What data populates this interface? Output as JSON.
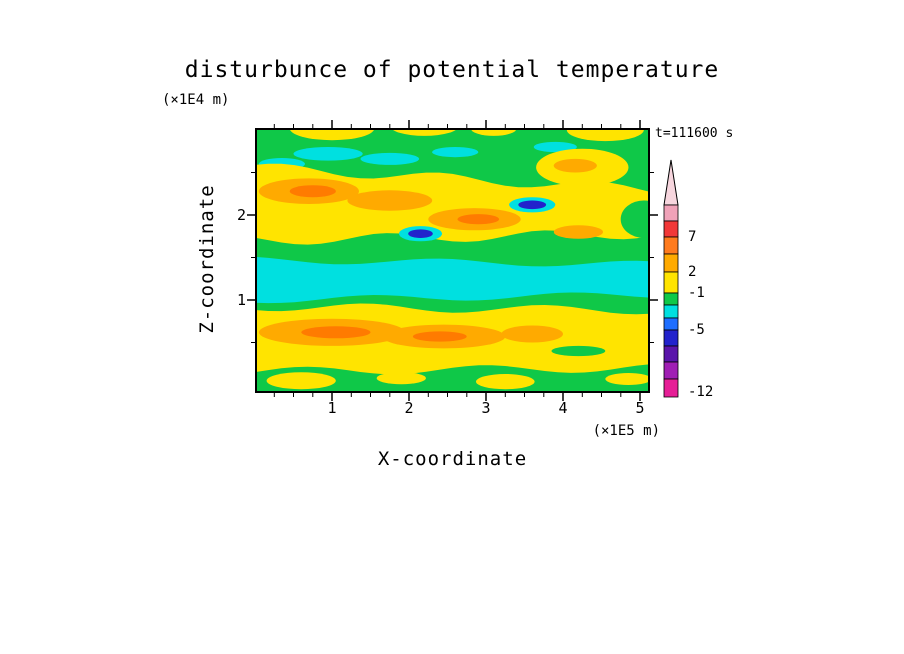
{
  "title": "disturbunce of potential temperature",
  "time_label": "t=111600 s",
  "axes": {
    "x": {
      "label": "X-coordinate",
      "unit_label": "(×1E5 m)",
      "tick_labels": [
        "1",
        "2",
        "3",
        "4",
        "5"
      ],
      "ticks": [
        1,
        2,
        3,
        4,
        5
      ],
      "range": [
        0,
        5.13
      ]
    },
    "y": {
      "label": "Z-coordinate",
      "unit_label": "(×1E4 m)",
      "tick_labels": [
        "1",
        "2"
      ],
      "ticks": [
        1,
        2
      ],
      "range": [
        0,
        3.02
      ]
    }
  },
  "colorbar": {
    "tick_labels": [
      "7",
      "2",
      "-1",
      "-5",
      "-12"
    ],
    "levels_labeled": [
      7,
      2,
      -1,
      -5,
      -12
    ],
    "arrow_color": "#f7d6de",
    "segments": [
      {
        "color": "#f0a2b8"
      },
      {
        "color": "#f23838"
      },
      {
        "color": "#ff7b1e"
      },
      {
        "color": "#ffaa00"
      },
      {
        "color": "#ffe400"
      },
      {
        "color": "#0fc848"
      },
      {
        "color": "#00e0e0"
      },
      {
        "color": "#1e6eff"
      },
      {
        "color": "#2222cc"
      },
      {
        "color": "#5a14aa"
      },
      {
        "color": "#a01eb4"
      },
      {
        "color": "#e61e96"
      }
    ]
  },
  "chart_data": {
    "type": "heatmap",
    "title": "disturbunce of potential temperature",
    "xlabel": "X-coordinate (×1E5 m)",
    "ylabel": "Z-coordinate (×1E4 m)",
    "annotation": "t=111600 s",
    "x_range": [
      0,
      5.13
    ],
    "z_range": [
      0,
      3.02
    ],
    "x_ticks": [
      1,
      2,
      3,
      4,
      5
    ],
    "z_ticks": [
      1,
      2
    ],
    "levels_labeled": [
      7,
      2,
      -1,
      -5,
      -12
    ],
    "grid": {
      "x": [
        0.25,
        0.75,
        1.25,
        1.75,
        2.25,
        2.75,
        3.25,
        3.75,
        4.25,
        4.75
      ],
      "z": [
        2.9,
        2.5,
        2.1,
        1.7,
        1.25,
        0.85,
        0.5,
        0.15
      ],
      "values": [
        [
          0,
          -2,
          -2,
          0,
          -2,
          0,
          1,
          3,
          1,
          0
        ],
        [
          3,
          5,
          3,
          3,
          1,
          1,
          0,
          3,
          3,
          1
        ],
        [
          1,
          4,
          5,
          3,
          3,
          3,
          1,
          -6,
          1,
          3
        ],
        [
          1,
          1,
          3,
          1,
          -6,
          0,
          0,
          1,
          1,
          0
        ],
        [
          -2,
          -2,
          -3,
          -2,
          -2,
          -3,
          -2,
          -2,
          -2,
          -2
        ],
        [
          3,
          3,
          3,
          3,
          3,
          3,
          3,
          1,
          1,
          1
        ],
        [
          4,
          6,
          5,
          6,
          4,
          3,
          4,
          3,
          3,
          1
        ],
        [
          0,
          1,
          0,
          0,
          1,
          0,
          0,
          0,
          1,
          0
        ]
      ],
      "note": "approximate disturbance values estimated from fill colors"
    },
    "palette": {
      "green": "#0fc848",
      "cyan": "#00e0e0",
      "yellow": "#ffe400",
      "orange": "#ffaa00",
      "deeporange": "#ff7b00",
      "navy": "#2222cc"
    },
    "base_color": "green",
    "features": [
      {
        "t": "blob",
        "c": "yellow",
        "x": 1.0,
        "z": 3.02,
        "rx": 0.55,
        "rz": 0.14
      },
      {
        "t": "blob",
        "c": "yellow",
        "x": 2.2,
        "z": 3.05,
        "rx": 0.45,
        "rz": 0.12
      },
      {
        "t": "blob",
        "c": "yellow",
        "x": 3.1,
        "z": 3.02,
        "rx": 0.3,
        "rz": 0.09
      },
      {
        "t": "blob",
        "c": "yellow",
        "x": 4.55,
        "z": 3.0,
        "rx": 0.5,
        "rz": 0.13
      },
      {
        "t": "blob",
        "c": "cyan",
        "x": 0.35,
        "z": 2.6,
        "rx": 0.3,
        "rz": 0.07
      },
      {
        "t": "blob",
        "c": "cyan",
        "x": 0.95,
        "z": 2.72,
        "rx": 0.45,
        "rz": 0.08
      },
      {
        "t": "blob",
        "c": "cyan",
        "x": 1.75,
        "z": 2.66,
        "rx": 0.38,
        "rz": 0.07
      },
      {
        "t": "blob",
        "c": "cyan",
        "x": 2.6,
        "z": 2.74,
        "rx": 0.3,
        "rz": 0.06
      },
      {
        "t": "blob",
        "c": "cyan",
        "x": 3.9,
        "z": 2.8,
        "rx": 0.28,
        "rz": 0.06
      },
      {
        "t": "band",
        "c": "yellow",
        "zt0": 2.56,
        "zt1": 2.3,
        "zb0": 1.7,
        "zb1": 1.78,
        "amp": 0.06,
        "k": 2.5,
        "ph": 0.5
      },
      {
        "t": "blob",
        "c": "yellow",
        "x": 4.25,
        "z": 2.56,
        "rx": 0.6,
        "rz": 0.22
      },
      {
        "t": "blob",
        "c": "green",
        "x": 5.05,
        "z": 1.95,
        "rx": 0.3,
        "rz": 0.22
      },
      {
        "t": "blob",
        "c": "orange",
        "x": 0.7,
        "z": 2.28,
        "rx": 0.65,
        "rz": 0.15
      },
      {
        "t": "blob",
        "c": "orange",
        "x": 1.75,
        "z": 2.17,
        "rx": 0.55,
        "rz": 0.12
      },
      {
        "t": "blob",
        "c": "orange",
        "x": 2.85,
        "z": 1.95,
        "rx": 0.6,
        "rz": 0.13
      },
      {
        "t": "blob",
        "c": "orange",
        "x": 4.2,
        "z": 1.8,
        "rx": 0.32,
        "rz": 0.08
      },
      {
        "t": "blob",
        "c": "orange",
        "x": 4.16,
        "z": 2.58,
        "rx": 0.28,
        "rz": 0.08
      },
      {
        "t": "blob",
        "c": "deeporange",
        "x": 0.75,
        "z": 2.28,
        "rx": 0.3,
        "rz": 0.07
      },
      {
        "t": "blob",
        "c": "deeporange",
        "x": 2.9,
        "z": 1.95,
        "rx": 0.27,
        "rz": 0.06
      },
      {
        "t": "blob",
        "c": "cyan",
        "x": 3.6,
        "z": 2.12,
        "rx": 0.3,
        "rz": 0.09
      },
      {
        "t": "blob",
        "c": "navy",
        "x": 3.6,
        "z": 2.12,
        "rx": 0.18,
        "rz": 0.05
      },
      {
        "t": "blob",
        "c": "cyan",
        "x": 2.15,
        "z": 1.78,
        "rx": 0.28,
        "rz": 0.09
      },
      {
        "t": "blob",
        "c": "navy",
        "x": 2.15,
        "z": 1.78,
        "rx": 0.16,
        "rz": 0.05
      },
      {
        "t": "band",
        "c": "cyan",
        "zt0": 1.47,
        "zt1": 1.42,
        "zb0": 1.0,
        "zb1": 1.06,
        "amp": 0.04,
        "k": 2.0,
        "ph": 2.0
      },
      {
        "t": "band",
        "c": "yellow",
        "zt0": 0.92,
        "zt1": 0.88,
        "zb0": 0.16,
        "zb1": 0.2,
        "amp": 0.05,
        "k": 2.2,
        "ph": 4.0
      },
      {
        "t": "blob",
        "c": "orange",
        "x": 1.0,
        "z": 0.62,
        "rx": 0.95,
        "rz": 0.16
      },
      {
        "t": "blob",
        "c": "orange",
        "x": 2.45,
        "z": 0.57,
        "rx": 0.8,
        "rz": 0.14
      },
      {
        "t": "blob",
        "c": "orange",
        "x": 3.6,
        "z": 0.6,
        "rx": 0.4,
        "rz": 0.1
      },
      {
        "t": "blob",
        "c": "deeporange",
        "x": 1.05,
        "z": 0.62,
        "rx": 0.45,
        "rz": 0.07
      },
      {
        "t": "blob",
        "c": "deeporange",
        "x": 2.4,
        "z": 0.57,
        "rx": 0.35,
        "rz": 0.06
      },
      {
        "t": "blob",
        "c": "green",
        "x": 4.2,
        "z": 0.4,
        "rx": 0.35,
        "rz": 0.06
      },
      {
        "t": "blob",
        "c": "yellow",
        "x": 0.6,
        "z": 0.05,
        "rx": 0.45,
        "rz": 0.1
      },
      {
        "t": "blob",
        "c": "yellow",
        "x": 1.9,
        "z": 0.08,
        "rx": 0.32,
        "rz": 0.07
      },
      {
        "t": "blob",
        "c": "yellow",
        "x": 3.25,
        "z": 0.04,
        "rx": 0.38,
        "rz": 0.09
      },
      {
        "t": "blob",
        "c": "yellow",
        "x": 4.85,
        "z": 0.07,
        "rx": 0.3,
        "rz": 0.07
      }
    ]
  }
}
